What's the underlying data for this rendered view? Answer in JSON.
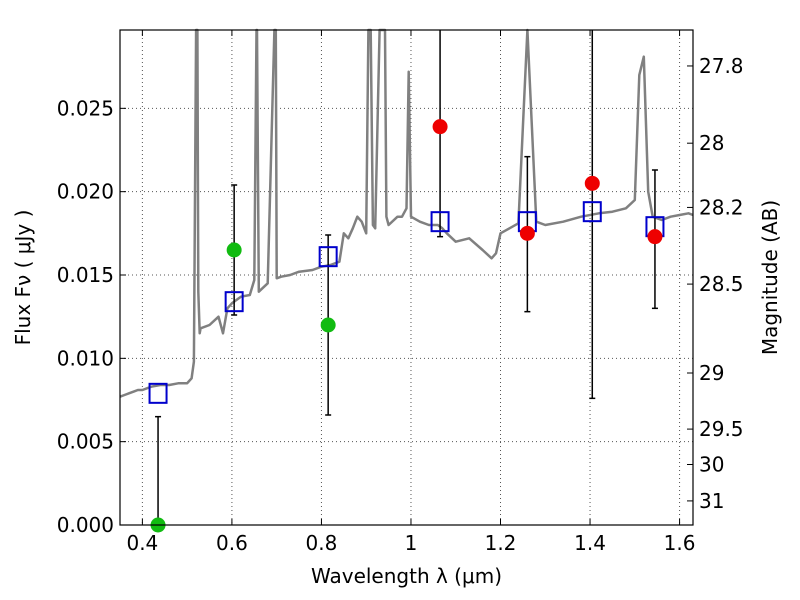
{
  "chart_data": {
    "type": "scatter",
    "title": "",
    "xlabel": "Wavelength  λ (μm)",
    "ylabel": "Flux  Fν ( μJy )",
    "y2label": "Magnitude (AB)",
    "xlim": [
      0.35,
      1.63
    ],
    "ylim": [
      0.0,
      0.0297
    ],
    "grid": true,
    "x_ticks": [
      0.4,
      0.6,
      0.8,
      1.0,
      1.2,
      1.4,
      1.6
    ],
    "x_tick_labels": [
      "0.4",
      "0.6",
      "0.8",
      "1",
      "1.2",
      "1.4",
      "1.6"
    ],
    "y_ticks": [
      0.0,
      0.005,
      0.01,
      0.015,
      0.02,
      0.025
    ],
    "y_tick_labels": [
      "0.000",
      "0.005",
      "0.010",
      "0.015",
      "0.020",
      "0.025"
    ],
    "y2_ticks": [
      27.8,
      28.0,
      28.2,
      28.5,
      29.0,
      29.5,
      30.0,
      31.0
    ],
    "y2_tick_labels": [
      "27.8",
      "28",
      "28.2",
      "28.5",
      "29",
      "29.5",
      "30",
      "31"
    ],
    "colors": {
      "model": "#808080",
      "model_points": "#0000cc",
      "detected": "#ee0000",
      "optical": "#11bb11",
      "errorbar": "#000000",
      "grid": "#555555"
    },
    "model_spectrum": {
      "x": [
        0.35,
        0.36,
        0.37,
        0.38,
        0.39,
        0.4,
        0.42,
        0.44,
        0.46,
        0.48,
        0.5,
        0.51,
        0.515,
        0.52,
        0.523,
        0.525,
        0.528,
        0.53,
        0.55,
        0.57,
        0.58,
        0.59,
        0.6,
        0.62,
        0.64,
        0.65,
        0.655,
        0.656,
        0.66,
        0.68,
        0.695,
        0.698,
        0.7,
        0.71,
        0.73,
        0.75,
        0.78,
        0.8,
        0.82,
        0.84,
        0.85,
        0.86,
        0.87,
        0.88,
        0.89,
        0.9,
        0.905,
        0.91,
        0.915,
        0.92,
        0.93,
        0.94,
        0.942,
        0.945,
        0.95,
        0.97,
        0.98,
        0.99,
        0.995,
        1.0,
        1.02,
        1.04,
        1.06,
        1.07,
        1.08,
        1.1,
        1.13,
        1.16,
        1.18,
        1.19,
        1.2,
        1.22,
        1.24,
        1.26,
        1.28,
        1.3,
        1.34,
        1.38,
        1.42,
        1.45,
        1.48,
        1.5,
        1.51,
        1.52,
        1.53,
        1.54,
        1.56,
        1.58,
        1.6,
        1.62,
        1.63
      ],
      "y": [
        0.0077,
        0.0078,
        0.0079,
        0.008,
        0.0081,
        0.0081,
        0.0083,
        0.0084,
        0.0084,
        0.0085,
        0.0085,
        0.0088,
        0.0098,
        0.0297,
        0.0297,
        0.014,
        0.0115,
        0.0118,
        0.012,
        0.0125,
        0.0115,
        0.013,
        0.0133,
        0.0137,
        0.0138,
        0.0147,
        0.0297,
        0.0297,
        0.014,
        0.0145,
        0.0297,
        0.0297,
        0.0148,
        0.0149,
        0.015,
        0.0152,
        0.0153,
        0.0155,
        0.0156,
        0.0158,
        0.0175,
        0.0172,
        0.0178,
        0.0185,
        0.0182,
        0.0175,
        0.0297,
        0.0297,
        0.018,
        0.0178,
        0.0297,
        0.0297,
        0.0297,
        0.0185,
        0.018,
        0.0185,
        0.0185,
        0.019,
        0.0272,
        0.0185,
        0.0182,
        0.018,
        0.018,
        0.0178,
        0.0175,
        0.017,
        0.0172,
        0.0165,
        0.016,
        0.0163,
        0.0175,
        0.0178,
        0.0181,
        0.0297,
        0.0182,
        0.018,
        0.0182,
        0.0185,
        0.0187,
        0.0188,
        0.019,
        0.0195,
        0.027,
        0.0281,
        0.02,
        0.0185,
        0.0183,
        0.0185,
        0.0186,
        0.0187,
        0.0186
      ]
    },
    "series": [
      {
        "name": "model_points",
        "marker": "open-square",
        "x": [
          0.435,
          0.605,
          0.815,
          1.065,
          1.26,
          1.405,
          1.545
        ],
        "y": [
          0.0079,
          0.0134,
          0.0161,
          0.0182,
          0.0182,
          0.0188,
          0.0179
        ]
      },
      {
        "name": "detected",
        "marker": "filled-circle",
        "x": [
          1.065,
          1.26,
          1.405,
          1.545
        ],
        "y": [
          0.0239,
          0.0175,
          0.0205,
          0.0173
        ]
      },
      {
        "name": "optical",
        "marker": "filled-circle",
        "x": [
          0.435,
          0.605,
          0.815
        ],
        "y": [
          0.0,
          0.0165,
          0.012
        ]
      }
    ],
    "errorbars": [
      {
        "x": 0.435,
        "y_low": 0.0,
        "y_high": 0.0065
      },
      {
        "x": 0.605,
        "y_low": 0.0126,
        "y_high": 0.0204
      },
      {
        "x": 0.815,
        "y_low": 0.0066,
        "y_high": 0.0174
      },
      {
        "x": 1.065,
        "y_low": 0.0173,
        "y_high": 0.0297
      },
      {
        "x": 1.26,
        "y_low": 0.0128,
        "y_high": 0.0221
      },
      {
        "x": 1.405,
        "y_low": 0.0076,
        "y_high": 0.0297
      },
      {
        "x": 1.545,
        "y_low": 0.013,
        "y_high": 0.0213
      }
    ]
  }
}
